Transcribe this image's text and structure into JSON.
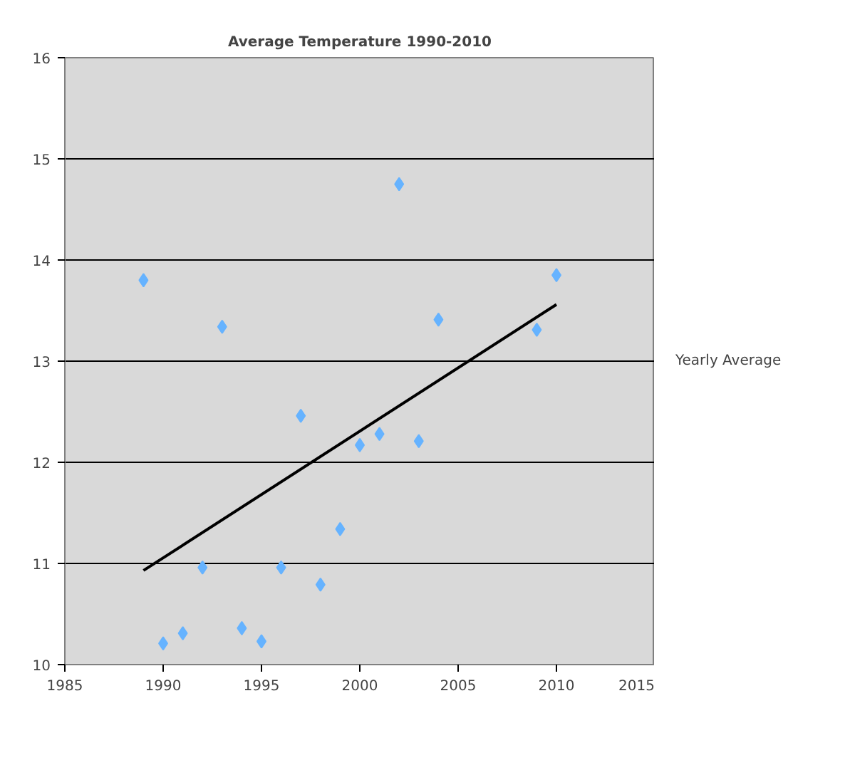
{
  "chart_data": {
    "type": "scatter",
    "title": "Average Temperature 1990-2010",
    "xlim": [
      1985,
      2015
    ],
    "xticks": [
      1985,
      1990,
      1995,
      2000,
      2005,
      2010,
      2015
    ],
    "ylim": [
      10,
      16
    ],
    "yticks": [
      10,
      11,
      12,
      13,
      14,
      15,
      16
    ],
    "grid": "y",
    "legend": "right",
    "series": [
      {
        "name": "Yearly Average",
        "color": "#66b3ff",
        "marker": "diamond",
        "x": [
          1989,
          1990,
          1991,
          1992,
          1993,
          1994,
          1995,
          1996,
          1997,
          1998,
          1999,
          2000,
          2001,
          2002,
          2003,
          2004,
          2009,
          2010
        ],
        "values": [
          13.8,
          10.21,
          10.31,
          10.96,
          13.34,
          10.36,
          10.23,
          10.96,
          12.46,
          10.79,
          11.34,
          12.17,
          12.28,
          14.75,
          12.21,
          13.41,
          13.31,
          13.85
        ]
      },
      {
        "type": "line",
        "color": "#000000",
        "line_style": "solid",
        "x": [
          1989,
          2010
        ],
        "values": [
          10.93,
          13.56
        ]
      }
    ]
  }
}
